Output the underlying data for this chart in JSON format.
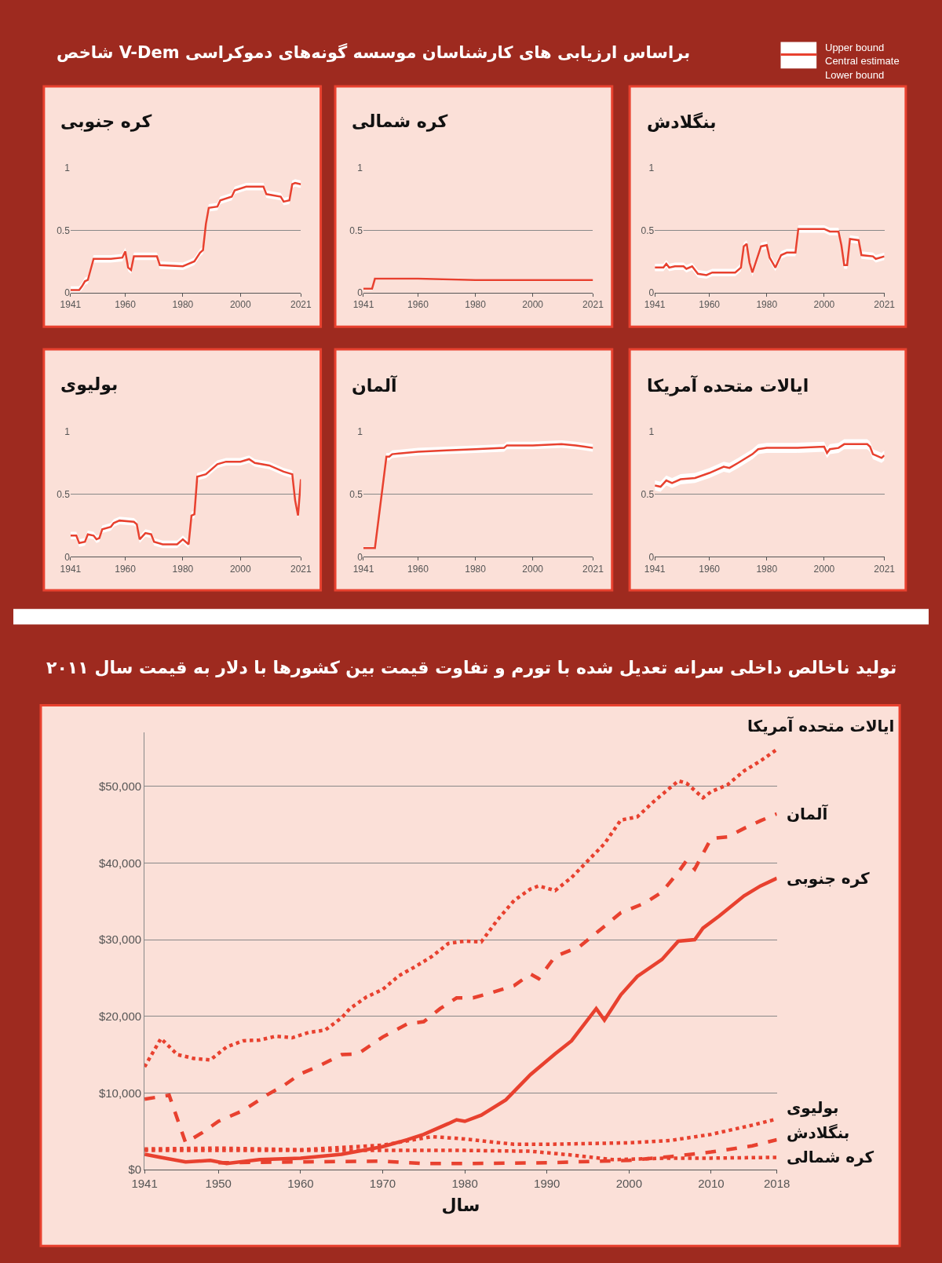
{
  "chart_data": [
    {
      "type": "line",
      "title": "کره جنوبی",
      "annotations": [
        "شاخص V-Dem براساس ارزیابی های کارشناسان موسسه گونه‌های دموکراسی",
        "Upper bound",
        "Central estimate",
        "Lower bound"
      ],
      "xlim": [
        1941,
        2021
      ],
      "xticks": [
        1941,
        1960,
        1980,
        2000,
        2021
      ],
      "ylim": [
        0,
        1
      ],
      "yticks": [
        0,
        0.5,
        1
      ],
      "grid": "y",
      "x": [
        1941,
        1944,
        1945,
        1946,
        1947,
        1949,
        1955,
        1959,
        1960,
        1961,
        1962,
        1963,
        1971,
        1972,
        1980,
        1981,
        1984,
        1986,
        1987,
        1988,
        1989,
        1992,
        1993,
        1997,
        1998,
        2002,
        2008,
        2009,
        2014,
        2015,
        2017,
        2018,
        2019,
        2021
      ],
      "series": [
        {
          "color": "#e8412f",
          "values": [
            0.02,
            0.02,
            0.05,
            0.09,
            0.1,
            0.27,
            0.27,
            0.28,
            0.33,
            0.2,
            0.18,
            0.29,
            0.29,
            0.22,
            0.21,
            0.22,
            0.25,
            0.32,
            0.34,
            0.55,
            0.68,
            0.69,
            0.74,
            0.77,
            0.82,
            0.85,
            0.85,
            0.79,
            0.77,
            0.73,
            0.74,
            0.87,
            0.88,
            0.87
          ],
          "lower": [
            0,
            0,
            0.02,
            0.06,
            0.07,
            0.24,
            0.24,
            0.25,
            0.3,
            0.17,
            0.15,
            0.26,
            0.26,
            0.19,
            0.18,
            0.19,
            0.22,
            0.29,
            0.31,
            0.52,
            0.65,
            0.66,
            0.71,
            0.74,
            0.79,
            0.82,
            0.82,
            0.76,
            0.74,
            0.7,
            0.71,
            0.84,
            0.85,
            0.84
          ],
          "upper": [
            0.05,
            0.05,
            0.08,
            0.12,
            0.13,
            0.3,
            0.3,
            0.31,
            0.36,
            0.23,
            0.21,
            0.32,
            0.32,
            0.25,
            0.24,
            0.25,
            0.28,
            0.35,
            0.37,
            0.58,
            0.71,
            0.72,
            0.77,
            0.8,
            0.85,
            0.88,
            0.88,
            0.82,
            0.8,
            0.76,
            0.77,
            0.9,
            0.91,
            0.9
          ]
        }
      ]
    },
    {
      "type": "line",
      "title": "کره شمالی",
      "xlim": [
        1941,
        2021
      ],
      "xticks": [
        1941,
        1960,
        1980,
        2000,
        2021
      ],
      "ylim": [
        0,
        1
      ],
      "yticks": [
        0,
        0.5,
        1
      ],
      "grid": "y",
      "x": [
        1941,
        1944,
        1945,
        1960,
        1980,
        2000,
        2021
      ],
      "series": [
        {
          "color": "#e8412f",
          "values": [
            0.03,
            0.03,
            0.11,
            0.11,
            0.1,
            0.1,
            0.1
          ],
          "lower": [
            0.02,
            0.02,
            0.1,
            0.1,
            0.09,
            0.09,
            0.09
          ],
          "upper": [
            0.04,
            0.04,
            0.12,
            0.12,
            0.11,
            0.11,
            0.11
          ]
        }
      ]
    },
    {
      "type": "line",
      "title": "بنگلادش",
      "xlim": [
        1941,
        2021
      ],
      "xticks": [
        1941,
        1960,
        1980,
        2000,
        2021
      ],
      "ylim": [
        0,
        1
      ],
      "yticks": [
        0,
        0.5,
        1
      ],
      "grid": "y",
      "x": [
        1941,
        1944,
        1945,
        1946,
        1948,
        1951,
        1952,
        1954,
        1956,
        1959,
        1961,
        1965,
        1969,
        1971,
        1972,
        1973,
        1974,
        1975,
        1977,
        1978,
        1980,
        1981,
        1983,
        1985,
        1987,
        1990,
        1991,
        1995,
        2000,
        2002,
        2005,
        2006,
        2007,
        2008,
        2009,
        2012,
        2013,
        2017,
        2018,
        2021
      ],
      "series": [
        {
          "color": "#e8412f",
          "values": [
            0.2,
            0.2,
            0.23,
            0.2,
            0.21,
            0.21,
            0.19,
            0.21,
            0.15,
            0.14,
            0.16,
            0.16,
            0.16,
            0.2,
            0.37,
            0.39,
            0.24,
            0.16,
            0.3,
            0.37,
            0.38,
            0.28,
            0.2,
            0.3,
            0.32,
            0.32,
            0.51,
            0.51,
            0.51,
            0.49,
            0.49,
            0.38,
            0.22,
            0.22,
            0.43,
            0.42,
            0.3,
            0.29,
            0.27,
            0.29
          ],
          "lower": [
            0.17,
            0.17,
            0.2,
            0.17,
            0.18,
            0.18,
            0.16,
            0.18,
            0.12,
            0.11,
            0.13,
            0.13,
            0.13,
            0.17,
            0.34,
            0.36,
            0.21,
            0.13,
            0.27,
            0.34,
            0.35,
            0.25,
            0.17,
            0.27,
            0.29,
            0.29,
            0.48,
            0.48,
            0.48,
            0.46,
            0.46,
            0.35,
            0.19,
            0.19,
            0.4,
            0.39,
            0.27,
            0.26,
            0.24,
            0.26
          ],
          "upper": [
            0.23,
            0.23,
            0.26,
            0.23,
            0.24,
            0.24,
            0.22,
            0.24,
            0.18,
            0.17,
            0.19,
            0.19,
            0.19,
            0.23,
            0.4,
            0.42,
            0.27,
            0.19,
            0.33,
            0.4,
            0.41,
            0.31,
            0.23,
            0.33,
            0.35,
            0.35,
            0.54,
            0.54,
            0.54,
            0.52,
            0.52,
            0.41,
            0.25,
            0.25,
            0.46,
            0.45,
            0.33,
            0.32,
            0.3,
            0.32
          ]
        }
      ]
    },
    {
      "type": "line",
      "title": "بولیوی",
      "xlim": [
        1941,
        2021
      ],
      "xticks": [
        1941,
        1960,
        1980,
        2000,
        2021
      ],
      "ylim": [
        0,
        1
      ],
      "yticks": [
        0,
        0.5,
        1
      ],
      "grid": "y",
      "x": [
        1941,
        1943,
        1944,
        1946,
        1947,
        1949,
        1950,
        1951,
        1952,
        1955,
        1956,
        1958,
        1963,
        1964,
        1965,
        1967,
        1969,
        1970,
        1973,
        1978,
        1980,
        1982,
        1983,
        1984,
        1985,
        1988,
        1992,
        1995,
        2000,
        2003,
        2005,
        2010,
        2015,
        2018,
        2019,
        2020,
        2021
      ],
      "series": [
        {
          "color": "#e8412f",
          "values": [
            0.17,
            0.17,
            0.11,
            0.12,
            0.18,
            0.17,
            0.14,
            0.15,
            0.22,
            0.24,
            0.27,
            0.29,
            0.28,
            0.26,
            0.14,
            0.19,
            0.18,
            0.12,
            0.1,
            0.1,
            0.14,
            0.1,
            0.33,
            0.34,
            0.64,
            0.66,
            0.74,
            0.76,
            0.76,
            0.78,
            0.75,
            0.73,
            0.68,
            0.66,
            0.45,
            0.33,
            0.62
          ],
          "lower": [
            0.14,
            0.14,
            0.08,
            0.09,
            0.15,
            0.14,
            0.11,
            0.12,
            0.19,
            0.21,
            0.24,
            0.26,
            0.25,
            0.23,
            0.11,
            0.16,
            0.15,
            0.09,
            0.07,
            0.07,
            0.11,
            0.07,
            0.3,
            0.31,
            0.61,
            0.63,
            0.71,
            0.73,
            0.73,
            0.75,
            0.72,
            0.7,
            0.65,
            0.63,
            0.42,
            0.3,
            0.59
          ],
          "upper": [
            0.2,
            0.2,
            0.14,
            0.15,
            0.21,
            0.2,
            0.17,
            0.18,
            0.25,
            0.27,
            0.3,
            0.32,
            0.31,
            0.29,
            0.17,
            0.22,
            0.21,
            0.15,
            0.13,
            0.13,
            0.17,
            0.13,
            0.36,
            0.37,
            0.67,
            0.69,
            0.77,
            0.79,
            0.79,
            0.81,
            0.78,
            0.76,
            0.71,
            0.69,
            0.48,
            0.36,
            0.65
          ]
        }
      ]
    },
    {
      "type": "line",
      "title": "آلمان",
      "xlim": [
        1941,
        2021
      ],
      "xticks": [
        1941,
        1960,
        1980,
        2000,
        2021
      ],
      "ylim": [
        0,
        1
      ],
      "yticks": [
        0,
        0.5,
        1
      ],
      "grid": "y",
      "x": [
        1941,
        1945,
        1949,
        1950,
        1951,
        1960,
        1970,
        1980,
        1990,
        1991,
        2000,
        2010,
        2015,
        2018,
        2021
      ],
      "series": [
        {
          "color": "#e8412f",
          "values": [
            0.07,
            0.07,
            0.8,
            0.8,
            0.82,
            0.84,
            0.85,
            0.86,
            0.87,
            0.89,
            0.89,
            0.9,
            0.89,
            0.88,
            0.87
          ],
          "lower": [
            0.06,
            0.06,
            0.77,
            0.77,
            0.79,
            0.81,
            0.82,
            0.83,
            0.84,
            0.86,
            0.86,
            0.87,
            0.86,
            0.85,
            0.84
          ],
          "upper": [
            0.08,
            0.08,
            0.83,
            0.83,
            0.85,
            0.87,
            0.88,
            0.89,
            0.9,
            0.92,
            0.92,
            0.93,
            0.92,
            0.91,
            0.9
          ]
        }
      ]
    },
    {
      "type": "line",
      "title": "ایالات متحده آمریکا",
      "xlim": [
        1941,
        2021
      ],
      "xticks": [
        1941,
        1960,
        1980,
        2000,
        2021
      ],
      "ylim": [
        0,
        1
      ],
      "yticks": [
        0,
        0.5,
        1
      ],
      "grid": "y",
      "x": [
        1941,
        1943,
        1945,
        1947,
        1950,
        1955,
        1960,
        1965,
        1967,
        1970,
        1975,
        1977,
        1980,
        1990,
        2000,
        2001,
        2002,
        2005,
        2007,
        2015,
        2016,
        2017,
        2018,
        2020,
        2021
      ],
      "series": [
        {
          "color": "#e8412f",
          "values": [
            0.57,
            0.56,
            0.61,
            0.59,
            0.62,
            0.63,
            0.67,
            0.72,
            0.71,
            0.75,
            0.82,
            0.86,
            0.87,
            0.87,
            0.88,
            0.83,
            0.86,
            0.87,
            0.9,
            0.9,
            0.88,
            0.82,
            0.81,
            0.79,
            0.81
          ],
          "lower": [
            0.53,
            0.52,
            0.57,
            0.55,
            0.58,
            0.59,
            0.63,
            0.68,
            0.67,
            0.71,
            0.78,
            0.82,
            0.83,
            0.83,
            0.84,
            0.79,
            0.82,
            0.83,
            0.86,
            0.86,
            0.84,
            0.78,
            0.77,
            0.75,
            0.77
          ],
          "upper": [
            0.61,
            0.6,
            0.65,
            0.63,
            0.66,
            0.67,
            0.71,
            0.76,
            0.75,
            0.79,
            0.86,
            0.9,
            0.91,
            0.91,
            0.92,
            0.87,
            0.9,
            0.91,
            0.94,
            0.94,
            0.92,
            0.86,
            0.85,
            0.83,
            0.85
          ]
        }
      ]
    },
    {
      "type": "line",
      "title": "تولید ناخالص داخلی سرانه تعدیل شده با تورم و تفاوت قیمت بین کشورها با دلار به قیمت سال ۲۰۱۱",
      "xlabel": "سال",
      "xlim": [
        1941,
        2018
      ],
      "xticks": [
        1941,
        1950,
        1960,
        1970,
        1980,
        1990,
        2000,
        2010,
        2018
      ],
      "ylim": [
        0,
        57000
      ],
      "yticks": [
        {
          "value": 0,
          "label": "$0"
        },
        {
          "value": 10000,
          "label": "$10,000"
        },
        {
          "value": 20000,
          "label": "$20,000"
        },
        {
          "value": 30000,
          "label": "$30,000"
        },
        {
          "value": 40000,
          "label": "$40,000"
        },
        {
          "value": 50000,
          "label": "$50,000"
        }
      ],
      "grid": "y",
      "series": [
        {
          "name": "کره جنوبی",
          "color": "#e8412f",
          "line_style": "solid",
          "x": [
            1941,
            1943,
            1946,
            1949,
            1951,
            1955,
            1960,
            1965,
            1970,
            1973,
            1975,
            1978,
            1979,
            1980,
            1982,
            1985,
            1988,
            1991,
            1993,
            1996,
            1997,
            1999,
            2001,
            2004,
            2006,
            2008,
            2009,
            2011,
            2014,
            2016,
            2018
          ],
          "values": [
            2000,
            1600,
            1000,
            1200,
            800,
            1300,
            1500,
            2000,
            3000,
            3900,
            4600,
            6000,
            6500,
            6300,
            7100,
            9100,
            12400,
            15100,
            16800,
            21000,
            19500,
            22800,
            25200,
            27400,
            29800,
            30000,
            31500,
            33100,
            35700,
            37000,
            38000
          ]
        },
        {
          "name": "آلمان",
          "color": "#e8412f",
          "line_style": "dashed",
          "x": [
            1941,
            1944,
            1946,
            1948,
            1950,
            1953,
            1956,
            1958,
            1960,
            1962,
            1965,
            1967,
            1970,
            1973,
            1975,
            1977,
            1979,
            1981,
            1983,
            1986,
            1988,
            1989,
            1991,
            1994,
            1999,
            2002,
            2004,
            2006,
            2007,
            2008,
            2010,
            2012,
            2014,
            2016,
            2018
          ],
          "values": [
            9200,
            9700,
            3500,
            4800,
            6300,
            7700,
            9800,
            11000,
            12500,
            13400,
            15000,
            15100,
            17300,
            19000,
            19300,
            21000,
            22400,
            22400,
            23000,
            24000,
            25500,
            24900,
            27800,
            29100,
            33500,
            34800,
            36200,
            38800,
            40300,
            39200,
            43200,
            43400,
            44500,
            45500,
            46400
          ]
        },
        {
          "name": "ایالات متحده آمریکا",
          "color": "#e8412f",
          "line_style": "dotted",
          "x": [
            1941,
            1943,
            1945,
            1947,
            1949,
            1951,
            1953,
            1955,
            1957,
            1959,
            1961,
            1963,
            1965,
            1966,
            1968,
            1970,
            1972,
            1974,
            1976,
            1978,
            1980,
            1982,
            1984,
            1986,
            1988,
            1989,
            1991,
            1993,
            1995,
            1997,
            1999,
            2001,
            2003,
            2006,
            2007,
            2009,
            2010,
            2012,
            2014,
            2016,
            2018
          ],
          "values": [
            13400,
            17100,
            15000,
            14500,
            14300,
            16000,
            16800,
            16900,
            17400,
            17200,
            17900,
            18200,
            19800,
            21000,
            22500,
            23500,
            25300,
            26500,
            27800,
            29500,
            29800,
            29700,
            32600,
            35100,
            36600,
            37000,
            36400,
            38100,
            40300,
            42500,
            45600,
            46000,
            48000,
            50700,
            50400,
            48500,
            49300,
            50200,
            52000,
            53300,
            54800
          ]
        },
        {
          "name": "بولیوی",
          "color": "#e8412f",
          "line_style": "dotted",
          "x": [
            1941,
            1950,
            1960,
            1970,
            1976,
            1980,
            1986,
            1990,
            2000,
            2005,
            2010,
            2015,
            2018
          ],
          "values": [
            2700,
            2800,
            2600,
            3200,
            4300,
            4000,
            3300,
            3300,
            3500,
            3800,
            4600,
            5800,
            6600
          ]
        },
        {
          "name": "بنگلادش",
          "color": "#e8412f",
          "line_style": "dashed",
          "x": [
            1950,
            1960,
            1970,
            1975,
            1980,
            1990,
            2000,
            2005,
            2010,
            2015,
            2018
          ],
          "values": [
            900,
            1000,
            1100,
            800,
            800,
            900,
            1200,
            1700,
            2300,
            3100,
            3900
          ]
        },
        {
          "name": "کره شمالی",
          "color": "#e8412f",
          "line_style": "dotted",
          "x": [
            1941,
            1960,
            1980,
            1988,
            1993,
            1998,
            2005,
            2010,
            2018
          ],
          "values": [
            2500,
            2500,
            2500,
            2400,
            1900,
            1300,
            1500,
            1500,
            1600
          ]
        }
      ]
    }
  ]
}
